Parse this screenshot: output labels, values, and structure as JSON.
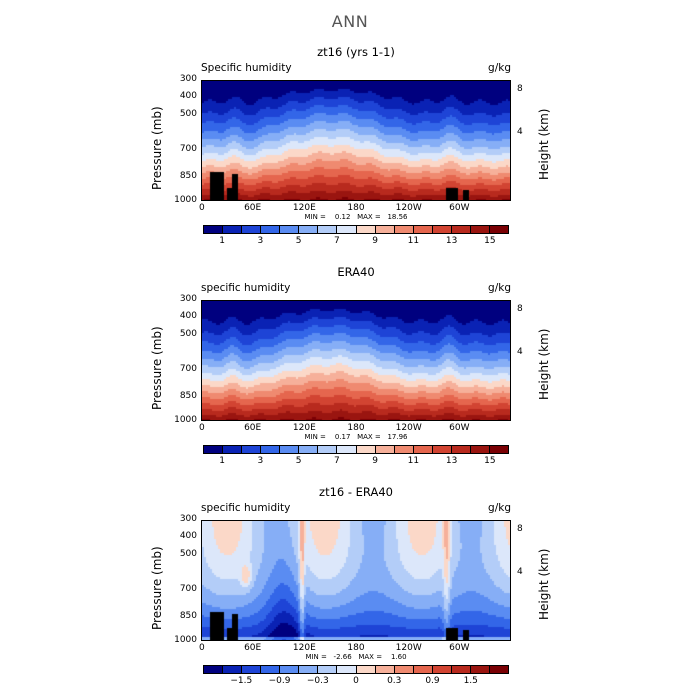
{
  "page": {
    "title": "ANN"
  },
  "chart_data": [
    {
      "type": "heatmap",
      "title": "zt16 (yrs 1-1)",
      "variable_label": "Specific humidity",
      "units": "g/kg",
      "ylabel": "Pressure (mb)",
      "ylabel_right": "Height (km)",
      "xticks": [
        "0",
        "60E",
        "120E",
        "180",
        "120W",
        "60W"
      ],
      "yticks": [
        "300",
        "400",
        "500",
        "700",
        "850",
        "1000"
      ],
      "right_ticks": [
        "8",
        "4"
      ],
      "min_max": "MIN =    0.12   MAX =   18.56",
      "colorbar_labels": [
        "1",
        "3",
        "5",
        "7",
        "9",
        "11",
        "13",
        "15"
      ],
      "colorbar_colors": [
        "#00007f",
        "#0a22b4",
        "#1e44d6",
        "#3366e8",
        "#5a8cf2",
        "#86aef6",
        "#b3cdf8",
        "#dce7fa",
        "#fbd8c8",
        "#f6b09a",
        "#ef8a70",
        "#e5664e",
        "#d24432",
        "#b82a1e",
        "#9a1510",
        "#7a0004"
      ],
      "ylim": [
        1000,
        300
      ],
      "field": "humidity",
      "orography": true
    },
    {
      "type": "heatmap",
      "title": "ERA40",
      "variable_label": "specific humidity",
      "units": "g/kg",
      "ylabel": "Pressure (mb)",
      "ylabel_right": "Height (km)",
      "xticks": [
        "0",
        "60E",
        "120E",
        "180",
        "120W",
        "60W"
      ],
      "yticks": [
        "300",
        "400",
        "500",
        "700",
        "850",
        "1000"
      ],
      "right_ticks": [
        "8",
        "4"
      ],
      "min_max": "MIN =    0.17   MAX =   17.96",
      "colorbar_labels": [
        "1",
        "3",
        "5",
        "7",
        "9",
        "11",
        "13",
        "15"
      ],
      "colorbar_colors": [
        "#00007f",
        "#0a22b4",
        "#1e44d6",
        "#3366e8",
        "#5a8cf2",
        "#86aef6",
        "#b3cdf8",
        "#dce7fa",
        "#fbd8c8",
        "#f6b09a",
        "#ef8a70",
        "#e5664e",
        "#d24432",
        "#b82a1e",
        "#9a1510",
        "#7a0004"
      ],
      "ylim": [
        1000,
        300
      ],
      "field": "humidity",
      "orography": false
    },
    {
      "type": "heatmap",
      "title": "zt16 - ERA40",
      "variable_label": "specific humidity",
      "units": "g/kg",
      "ylabel": "Pressure (mb)",
      "ylabel_right": "Height (km)",
      "xticks": [
        "0",
        "60E",
        "120E",
        "180",
        "120W",
        "60W"
      ],
      "yticks": [
        "300",
        "400",
        "500",
        "700",
        "850",
        "1000"
      ],
      "right_ticks": [
        "8",
        "4"
      ],
      "min_max": "MIN =   -2.66   MAX =    1.60",
      "colorbar_labels": [
        "−1.5",
        "−0.9",
        "−0.3",
        "0",
        "0.3",
        "0.9",
        "1.5"
      ],
      "colorbar_colors": [
        "#00007f",
        "#0a22b4",
        "#1e44d6",
        "#3366e8",
        "#5a8cf2",
        "#86aef6",
        "#b3cdf8",
        "#dce7fa",
        "#fbd8c8",
        "#f6b09a",
        "#ef8a70",
        "#e5664e",
        "#d24432",
        "#b82a1e",
        "#9a1510",
        "#7a0004"
      ],
      "ylim": [
        1000,
        300
      ],
      "field": "difference",
      "orography": true
    }
  ]
}
